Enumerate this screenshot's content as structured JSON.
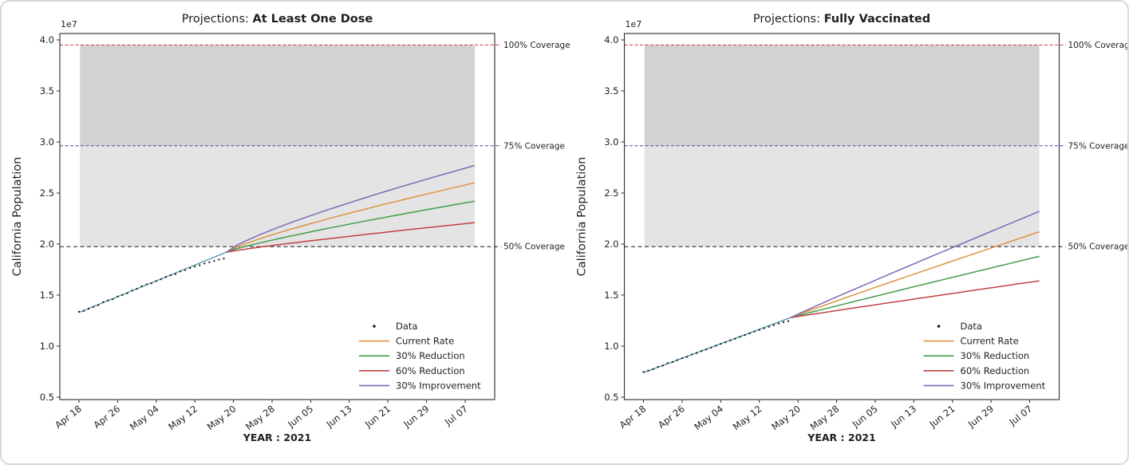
{
  "figure": {
    "description": "Two-panel projection figure of California vaccination coverage",
    "background_color": "#ffffff",
    "frame_border_color": "#d9d9d9",
    "population_reference_millions": 39.5,
    "coverage_lines": [
      {
        "label": "100% Coverage",
        "millions": 39.5,
        "color": "#c43c3c",
        "dash": "4 2.5"
      },
      {
        "label": "75% Coverage",
        "millions": 29.625,
        "color": "#4444b4",
        "dash": "4 2.5"
      },
      {
        "label": "50% Coverage",
        "millions": 19.75,
        "color": "#1a1a1a",
        "dash": "5 3.5"
      }
    ],
    "shaded_bands": [
      {
        "name": "band-50-to-75",
        "from_millions": 19.75,
        "to_millions": 29.625,
        "color": "#e4e4e4"
      },
      {
        "name": "band-75-to-100",
        "from_millions": 29.625,
        "to_millions": 39.5,
        "color": "#d2d2d2"
      }
    ],
    "shaded_span_days": [
      0.2,
      82
    ]
  },
  "chart_data": [
    {
      "type": "line",
      "panel": "left",
      "title": {
        "prefix": "Projections: ",
        "emphasis": "At Least One Dose"
      },
      "xlabel": "YEAR : 2021",
      "ylabel": "California Population",
      "y_offset_label": "1e7",
      "y_ticks_1e7": [
        0.5,
        1.0,
        1.5,
        2.0,
        2.5,
        3.0,
        3.5,
        4.0
      ],
      "ylim_1e7": [
        0.45,
        4.07
      ],
      "x_ticks": [
        {
          "day": 0,
          "label": "Apr 18"
        },
        {
          "day": 8,
          "label": "Apr 26"
        },
        {
          "day": 16,
          "label": "May 04"
        },
        {
          "day": 24,
          "label": "May 12"
        },
        {
          "day": 32,
          "label": "May 20"
        },
        {
          "day": 40,
          "label": "May 28"
        },
        {
          "day": 48,
          "label": "Jun 05"
        },
        {
          "day": 56,
          "label": "Jun 13"
        },
        {
          "day": 64,
          "label": "Jun 21"
        },
        {
          "day": 72,
          "label": "Jun 29"
        },
        {
          "day": 80,
          "label": "Jul 07"
        }
      ],
      "xlim_days": [
        -4,
        86
      ],
      "data_series": {
        "label": "Data",
        "color": "#1a1a1a",
        "start_day": 0,
        "step_days": 1,
        "values_millions": [
          13.37,
          13.46,
          13.67,
          13.85,
          14.02,
          14.32,
          14.48,
          14.6,
          14.86,
          15.02,
          15.18,
          15.45,
          15.62,
          15.86,
          16.05,
          16.16,
          16.38,
          16.55,
          16.77,
          16.94,
          17.06,
          17.32,
          17.45,
          17.65,
          17.8,
          17.93,
          18.1,
          18.22,
          18.35,
          18.48,
          18.58
        ]
      },
      "fit_line": {
        "color": "#4f93a8",
        "start_day": 0,
        "start_millions": 13.3,
        "end_day": 30.5,
        "end_millions": 19.2
      },
      "projections": [
        {
          "label": "Current Rate",
          "color": "#e0913f",
          "start_day": 30.5,
          "start_millions": 19.2,
          "end_day": 82,
          "end_millions": 26.0,
          "curvature": 0.82
        },
        {
          "label": "30% Reduction",
          "color": "#3f9e4b",
          "start_day": 30.5,
          "start_millions": 19.2,
          "end_day": 82,
          "end_millions": 24.2,
          "curvature": 0.85
        },
        {
          "label": "60% Reduction",
          "color": "#c14242",
          "start_day": 30.5,
          "start_millions": 19.2,
          "end_day": 82,
          "end_millions": 22.1,
          "curvature": 0.88
        },
        {
          "label": "30% Improvement",
          "color": "#8168ba",
          "start_day": 30.5,
          "start_millions": 19.2,
          "end_day": 82,
          "end_millions": 27.7,
          "curvature": 0.8
        }
      ],
      "legend": [
        {
          "label": "Data",
          "marker": "dot",
          "color": "#1a1a1a"
        },
        {
          "label": "Current Rate",
          "marker": "line",
          "color": "#e0913f"
        },
        {
          "label": "30% Reduction",
          "marker": "line",
          "color": "#3f9e4b"
        },
        {
          "label": "60% Reduction",
          "marker": "line",
          "color": "#c14242"
        },
        {
          "label": "30% Improvement",
          "marker": "line",
          "color": "#8168ba"
        }
      ]
    },
    {
      "type": "line",
      "panel": "right",
      "title": {
        "prefix": "Projections: ",
        "emphasis": "Fully Vaccinated"
      },
      "xlabel": "YEAR : 2021",
      "ylabel": "California Population",
      "y_offset_label": "1e7",
      "y_ticks_1e7": [
        0.5,
        1.0,
        1.5,
        2.0,
        2.5,
        3.0,
        3.5,
        4.0
      ],
      "ylim_1e7": [
        0.45,
        4.07
      ],
      "x_ticks": [
        {
          "day": 0,
          "label": "Apr 18"
        },
        {
          "day": 8,
          "label": "Apr 26"
        },
        {
          "day": 16,
          "label": "May 04"
        },
        {
          "day": 24,
          "label": "May 12"
        },
        {
          "day": 32,
          "label": "May 20"
        },
        {
          "day": 40,
          "label": "May 28"
        },
        {
          "day": 48,
          "label": "Jun 05"
        },
        {
          "day": 56,
          "label": "Jun 13"
        },
        {
          "day": 64,
          "label": "Jun 21"
        },
        {
          "day": 72,
          "label": "Jun 29"
        },
        {
          "day": 80,
          "label": "Jul 07"
        }
      ],
      "xlim_days": [
        -4,
        86
      ],
      "data_series": {
        "label": "Data",
        "color": "#1a1a1a",
        "start_day": 0,
        "step_days": 1,
        "values_millions": [
          7.48,
          7.6,
          7.75,
          7.97,
          8.1,
          8.33,
          8.44,
          8.63,
          8.82,
          8.95,
          9.18,
          9.33,
          9.52,
          9.68,
          9.87,
          10.05,
          10.22,
          10.38,
          10.57,
          10.73,
          10.92,
          11.08,
          11.25,
          11.43,
          11.58,
          11.76,
          11.9,
          12.05,
          12.22,
          12.35,
          12.45
        ]
      },
      "fit_line": {
        "color": "#4f93a8",
        "start_day": 0,
        "start_millions": 7.4,
        "end_day": 30.5,
        "end_millions": 12.8
      },
      "projections": [
        {
          "label": "Current Rate",
          "color": "#e0913f",
          "start_day": 30.5,
          "start_millions": 12.8,
          "end_day": 82,
          "end_millions": 21.2,
          "curvature": 0.97
        },
        {
          "label": "30% Reduction",
          "color": "#3f9e4b",
          "start_day": 30.5,
          "start_millions": 12.8,
          "end_day": 82,
          "end_millions": 18.8,
          "curvature": 0.98
        },
        {
          "label": "60% Reduction",
          "color": "#c14242",
          "start_day": 30.5,
          "start_millions": 12.8,
          "end_day": 82,
          "end_millions": 16.4,
          "curvature": 0.98
        },
        {
          "label": "30% Improvement",
          "color": "#8168ba",
          "start_day": 30.5,
          "start_millions": 12.8,
          "end_day": 82,
          "end_millions": 23.2,
          "curvature": 0.97
        }
      ],
      "legend": [
        {
          "label": "Data",
          "marker": "dot",
          "color": "#1a1a1a"
        },
        {
          "label": "Current Rate",
          "marker": "line",
          "color": "#e0913f"
        },
        {
          "label": "30% Reduction",
          "marker": "line",
          "color": "#3f9e4b"
        },
        {
          "label": "60% Reduction",
          "marker": "line",
          "color": "#c14242"
        },
        {
          "label": "30% Improvement",
          "marker": "line",
          "color": "#8168ba"
        }
      ]
    }
  ]
}
